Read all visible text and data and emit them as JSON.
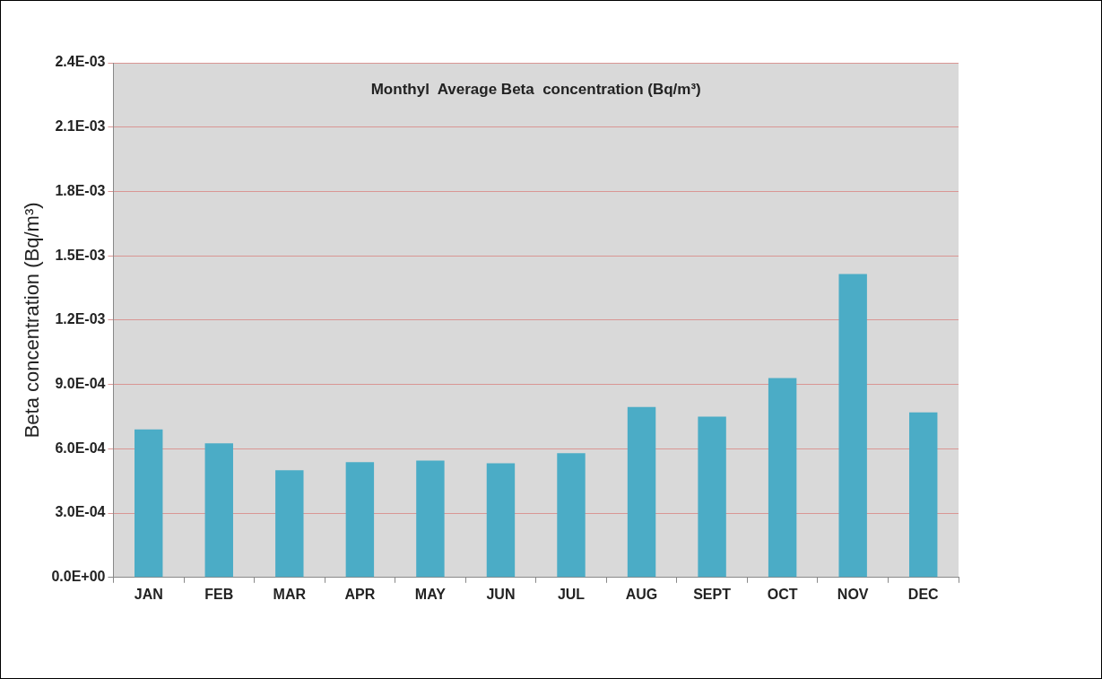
{
  "chart_data": {
    "type": "bar",
    "title": "Monthyl  Average Beta  concentration (Bq/m³)",
    "ylabel": "Beta concentration (Bq/m³)",
    "categories": [
      "JAN",
      "FEB",
      "MAR",
      "APR",
      "MAY",
      "JUN",
      "JUL",
      "AUG",
      "SEPT",
      "OCT",
      "NOV",
      "DEC"
    ],
    "values": [
      0.00069,
      0.000625,
      0.0005,
      0.000538,
      0.000545,
      0.000532,
      0.00058,
      0.000795,
      0.00075,
      0.00093,
      0.001415,
      0.00077
    ],
    "color": "#4bacc6",
    "ylim": [
      0,
      0.0024
    ],
    "yticks": [
      {
        "value": 0,
        "label": "0.0E+00"
      },
      {
        "value": 0.0003,
        "label": "3.0E-04"
      },
      {
        "value": 0.0006,
        "label": "6.0E-04"
      },
      {
        "value": 0.0009,
        "label": "9.0E-04"
      },
      {
        "value": 0.0012,
        "label": "1.2E-03"
      },
      {
        "value": 0.0015,
        "label": "1.5E-03"
      },
      {
        "value": 0.0018,
        "label": "1.8E-03"
      },
      {
        "value": 0.0021,
        "label": "2.1E-03"
      },
      {
        "value": 0.0024,
        "label": "2.4E-03"
      }
    ],
    "grid": "y"
  }
}
